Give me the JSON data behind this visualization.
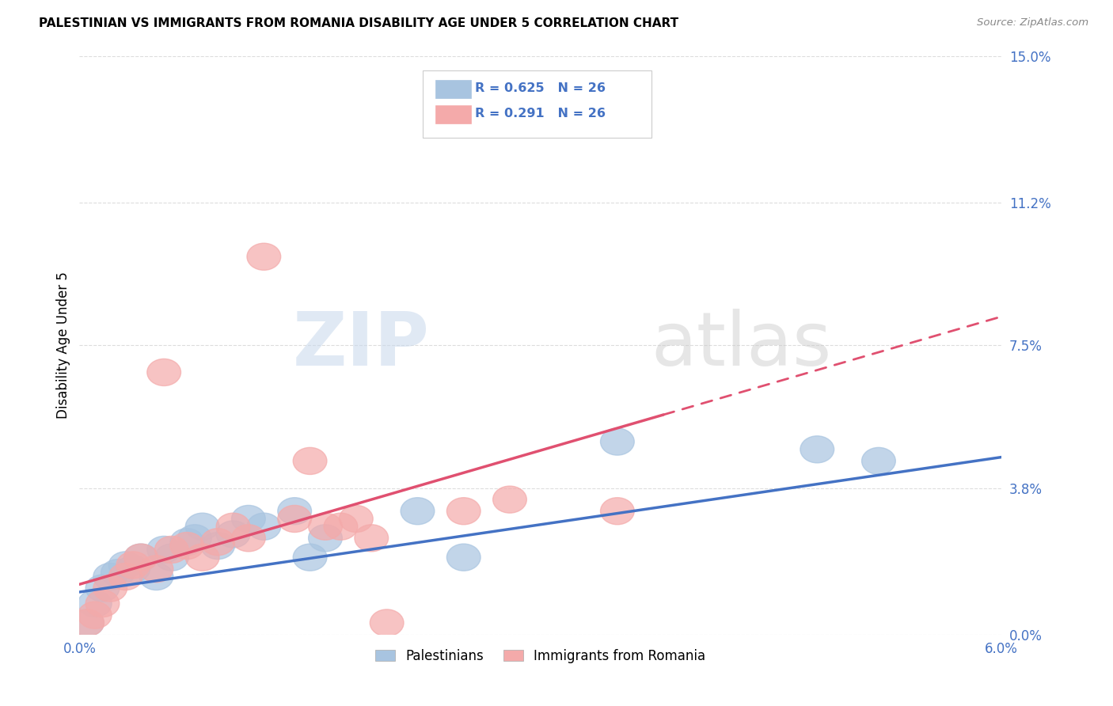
{
  "title": "PALESTINIAN VS IMMIGRANTS FROM ROMANIA DISABILITY AGE UNDER 5 CORRELATION CHART",
  "source": "Source: ZipAtlas.com",
  "ylabel": "Disability Age Under 5",
  "ylabel_values": [
    0.0,
    3.8,
    7.5,
    11.2,
    15.0
  ],
  "xmin": 0.0,
  "xmax": 6.0,
  "ymin": 0.0,
  "ymax": 15.0,
  "blue_color": "#A8C4E0",
  "pink_color": "#F4AAAA",
  "blue_line_color": "#4472C4",
  "pink_line_color": "#E05070",
  "legend_text_color": "#4472C4",
  "R_blue": 0.625,
  "N_blue": 26,
  "R_pink": 0.291,
  "N_pink": 26,
  "watermark_zip": "ZIP",
  "watermark_atlas": "atlas",
  "blue_scatter_x": [
    0.05,
    0.1,
    0.15,
    0.2,
    0.25,
    0.3,
    0.35,
    0.4,
    0.5,
    0.55,
    0.6,
    0.7,
    0.75,
    0.8,
    0.9,
    1.0,
    1.1,
    1.2,
    1.4,
    1.5,
    1.6,
    2.2,
    2.5,
    3.5,
    4.8,
    5.2
  ],
  "blue_scatter_y": [
    0.3,
    0.8,
    1.2,
    1.5,
    1.6,
    1.8,
    1.7,
    2.0,
    1.5,
    2.2,
    2.0,
    2.4,
    2.5,
    2.8,
    2.3,
    2.6,
    3.0,
    2.8,
    3.2,
    2.0,
    2.5,
    3.2,
    2.0,
    5.0,
    4.8,
    4.5
  ],
  "pink_scatter_x": [
    0.05,
    0.1,
    0.15,
    0.2,
    0.3,
    0.35,
    0.4,
    0.5,
    0.6,
    0.7,
    0.8,
    0.9,
    1.0,
    1.1,
    1.2,
    1.4,
    1.5,
    1.7,
    1.8,
    1.9,
    2.0,
    2.5,
    2.8,
    3.5,
    0.55,
    1.6
  ],
  "pink_scatter_y": [
    0.3,
    0.5,
    0.8,
    1.2,
    1.5,
    1.8,
    2.0,
    1.7,
    2.2,
    2.3,
    2.0,
    2.4,
    2.8,
    2.5,
    9.8,
    3.0,
    4.5,
    2.8,
    3.0,
    2.5,
    0.3,
    3.2,
    3.5,
    3.2,
    6.8,
    2.8
  ],
  "grid_color": "#DDDDDD",
  "background_color": "#FFFFFF",
  "legend_border_color": "#CCCCCC"
}
